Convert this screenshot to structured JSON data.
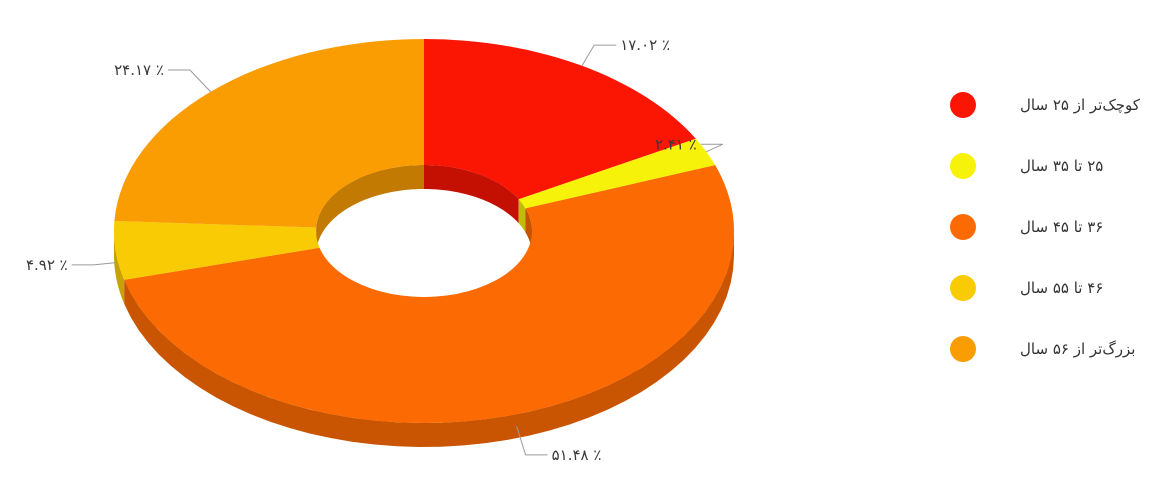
{
  "chart_data": {
    "type": "pie",
    "variant": "3d-doughnut",
    "categories": [
      "کوچک‌تر از ۲۵ سال",
      "۲۵ تا ۳۵ سال",
      "۳۶ تا ۴۵ سال",
      "۴۶ تا ۵۵ سال",
      "بزرگ‌تر از ۵۶ سال"
    ],
    "values": [
      17.02,
      2.41,
      51.48,
      4.92,
      24.17
    ],
    "value_labels": [
      "۱۷.۰۲ ٪",
      "۲.۴۱ ٪",
      "۵۱.۴۸ ٪",
      "۴.۹۲ ٪",
      "۲۴.۱۷ ٪"
    ],
    "colors": [
      "#fb1503",
      "#f6f20a",
      "#fb6a03",
      "#f9cb04",
      "#fa9d03"
    ],
    "legend_position": "right"
  }
}
